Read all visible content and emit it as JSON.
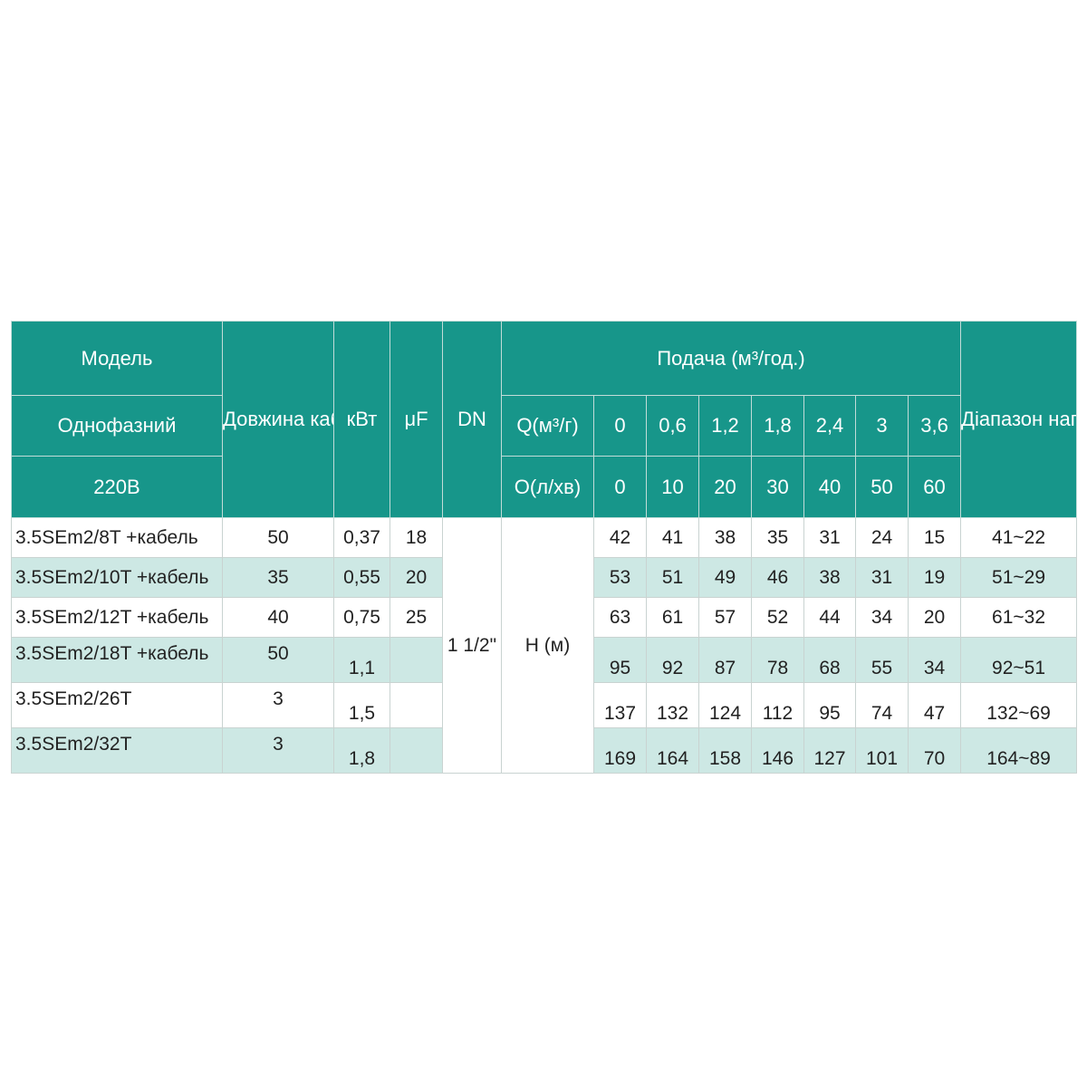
{
  "header": {
    "model": "Модель",
    "phase": "Однофазний",
    "voltage": "220В",
    "cable_length": "Довжина кабеля (м)",
    "kw": "кВт",
    "uf": "μF",
    "dn": "DN",
    "flow": "Подача (м³/год.)",
    "q_m3h": "Q(м³/г)",
    "q_lmin": "О(л/хв)",
    "head_range": "Діапазон напору (м)",
    "q_m3h_values": [
      "0",
      "0,6",
      "1,2",
      "1,8",
      "2,4",
      "3",
      "3,6"
    ],
    "q_lmin_values": [
      "0",
      "10",
      "20",
      "30",
      "40",
      "50",
      "60"
    ]
  },
  "dn_value": "1 1/2\"",
  "head_label": "H (м)",
  "rows": [
    {
      "model": "3.5SEm2/8T +кабель",
      "cable": "50",
      "kw": "0,37",
      "uf": "18",
      "h": [
        "42",
        "41",
        "38",
        "35",
        "31",
        "24",
        "15"
      ],
      "range": "41~22"
    },
    {
      "model": "3.5SEm2/10T +кабель",
      "cable": "35",
      "kw": "0,55",
      "uf": "20",
      "h": [
        "53",
        "51",
        "49",
        "46",
        "38",
        "31",
        "19"
      ],
      "range": "51~29"
    },
    {
      "model": "3.5SEm2/12T +кабель",
      "cable": "40",
      "kw": "0,75",
      "uf": "25",
      "h": [
        "63",
        "61",
        "57",
        "52",
        "44",
        "34",
        "20"
      ],
      "range": "61~32"
    },
    {
      "model": "3.5SEm2/18T +кабель",
      "cable": "50",
      "kw": "1,1",
      "uf": "",
      "h": [
        "95",
        "92",
        "87",
        "78",
        "68",
        "55",
        "34"
      ],
      "range": "92~51"
    },
    {
      "model": "3.5SEm2/26T",
      "cable": "3",
      "kw": "1,5",
      "uf": "",
      "h": [
        "137",
        "132",
        "124",
        "112",
        "95",
        "74",
        "47"
      ],
      "range": "132~69"
    },
    {
      "model": "3.5SEm2/32T",
      "cable": "3",
      "kw": "1,8",
      "uf": "",
      "h": [
        "169",
        "164",
        "158",
        "146",
        "127",
        "101",
        "70"
      ],
      "range": "164~89"
    }
  ],
  "colors": {
    "header": "#17968a",
    "alt_row": "#cde8e4"
  }
}
